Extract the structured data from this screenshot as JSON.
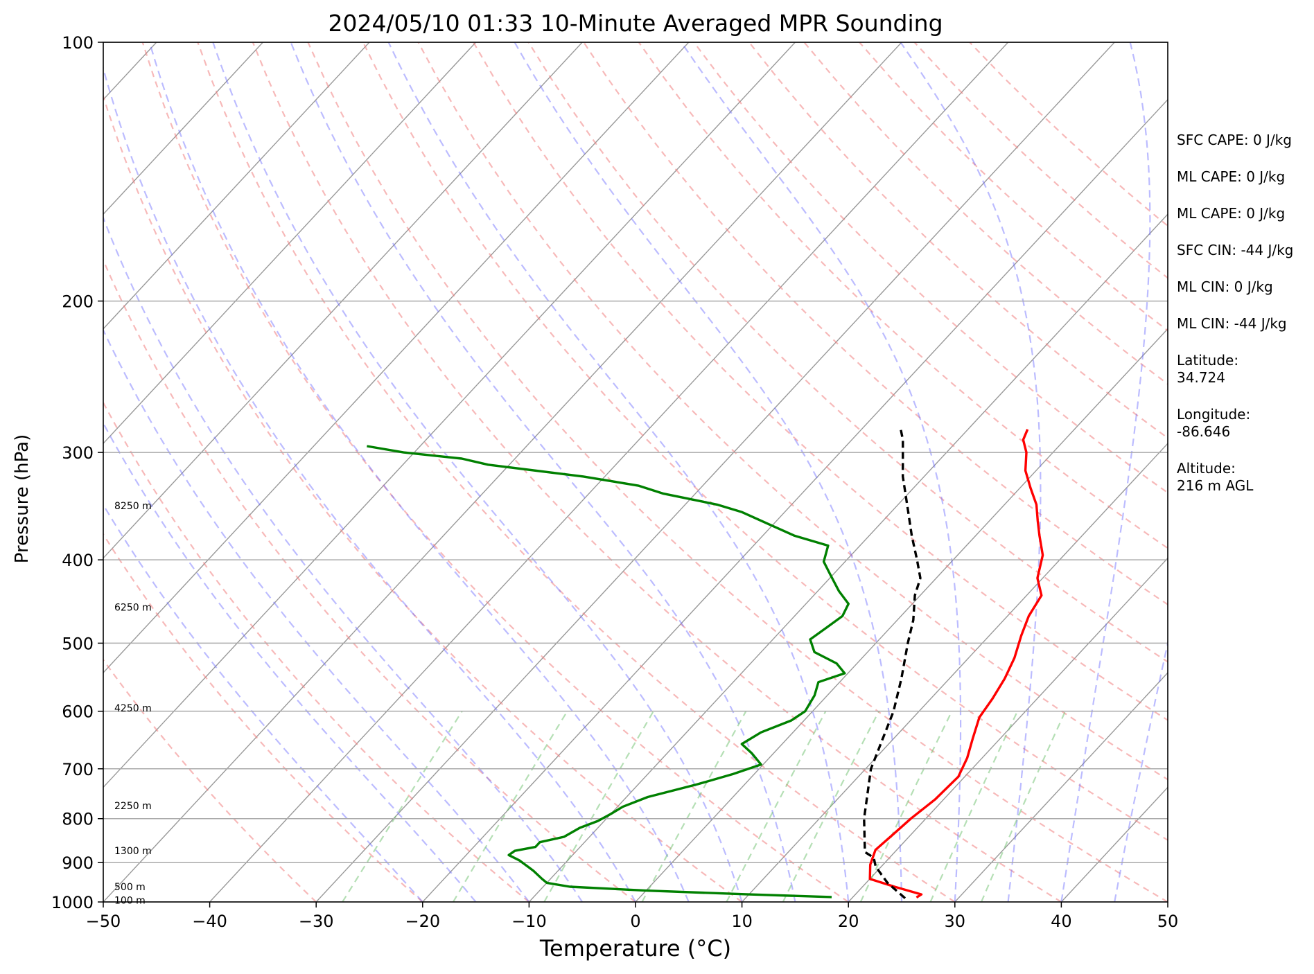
{
  "chart_data": {
    "type": "line",
    "subtype": "skew-t log-p",
    "title": "2024/05/10 01:33 10-Minute Averaged MPR Sounding",
    "xlabel": "Temperature (°C)",
    "ylabel": "Pressure (hPa)",
    "xlim": [
      -50,
      50
    ],
    "ylim": [
      1000,
      100
    ],
    "y_scale": "log",
    "x_ticks": [
      "−50",
      "−40",
      "−30",
      "−20",
      "−10",
      "0",
      "10",
      "20",
      "30",
      "40",
      "50"
    ],
    "x_tick_values": [
      -50,
      -40,
      -30,
      -20,
      -10,
      0,
      10,
      20,
      30,
      40,
      50
    ],
    "y_ticks": [
      "100",
      "200",
      "300",
      "400",
      "500",
      "600",
      "700",
      "800",
      "900",
      "1000"
    ],
    "y_tick_values": [
      100,
      200,
      300,
      400,
      500,
      600,
      700,
      800,
      900,
      1000
    ],
    "grid": true,
    "series": [
      {
        "color": "#ff0000",
        "points": [
          [
            26.0,
            988
          ],
          [
            26.2,
            980
          ],
          [
            23.0,
            960
          ],
          [
            20.0,
            940
          ],
          [
            18.8,
            905
          ],
          [
            18.0,
            870
          ],
          [
            18.3,
            835
          ],
          [
            18.6,
            800
          ],
          [
            19.2,
            760
          ],
          [
            19.4,
            715
          ],
          [
            18.6,
            680
          ],
          [
            17.4,
            645
          ],
          [
            16.2,
            610
          ],
          [
            15.8,
            580
          ],
          [
            15.2,
            550
          ],
          [
            14.3,
            520
          ],
          [
            13.0,
            490
          ],
          [
            12.0,
            465
          ],
          [
            11.4,
            440
          ],
          [
            9.5,
            420
          ],
          [
            8.0,
            395
          ],
          [
            6.0,
            375
          ],
          [
            4.5,
            360
          ],
          [
            3.0,
            345
          ],
          [
            1.0,
            330
          ],
          [
            -1.0,
            315
          ],
          [
            -2.5,
            300
          ],
          [
            -3.9,
            290
          ],
          [
            -4.4,
            282
          ]
        ]
      },
      {
        "color": "#008000",
        "points": [
          [
            18.0,
            987
          ],
          [
            10.0,
            980
          ],
          [
            0.0,
            970
          ],
          [
            -7.5,
            960
          ],
          [
            -10.0,
            950
          ],
          [
            -10.8,
            940
          ],
          [
            -12.3,
            920
          ],
          [
            -14.5,
            895
          ],
          [
            -16.0,
            882
          ],
          [
            -15.8,
            872
          ],
          [
            -14.2,
            863
          ],
          [
            -14.2,
            852
          ],
          [
            -12.4,
            840
          ],
          [
            -11.7,
            820
          ],
          [
            -10.6,
            805
          ],
          [
            -10.0,
            790
          ],
          [
            -9.5,
            775
          ],
          [
            -8.0,
            755
          ],
          [
            -4.5,
            730
          ],
          [
            -2.0,
            710
          ],
          [
            -0.2,
            692
          ],
          [
            -2.0,
            672
          ],
          [
            -3.8,
            655
          ],
          [
            -3.0,
            635
          ],
          [
            -1.2,
            615
          ],
          [
            -0.7,
            600
          ],
          [
            -1.2,
            575
          ],
          [
            -2.0,
            555
          ],
          [
            -0.3,
            542
          ],
          [
            -1.9,
            528
          ],
          [
            -5.0,
            512
          ],
          [
            -6.5,
            495
          ],
          [
            -6.0,
            480
          ],
          [
            -5.5,
            465
          ],
          [
            -6.0,
            450
          ],
          [
            -8.0,
            435
          ],
          [
            -10.4,
            415
          ],
          [
            -12.0,
            402
          ],
          [
            -13.0,
            385
          ],
          [
            -17.0,
            375
          ],
          [
            -20.0,
            365
          ],
          [
            -24.0,
            352
          ],
          [
            -27.0,
            345
          ],
          [
            -33.0,
            335
          ],
          [
            -36.0,
            328
          ],
          [
            -42.0,
            320
          ],
          [
            -52.0,
            310
          ],
          [
            -55.0,
            305
          ],
          [
            -61.0,
            300
          ],
          [
            -65.0,
            295
          ]
        ]
      },
      {
        "color": "#000000",
        "dashed": true,
        "points": [
          [
            25.0,
            990
          ],
          [
            22.0,
            950
          ],
          [
            19.5,
            910
          ],
          [
            18.5,
            888
          ],
          [
            17.2,
            875
          ],
          [
            14.2,
            800
          ],
          [
            10.5,
            700
          ],
          [
            7.6,
            600
          ],
          [
            5.5,
            550
          ],
          [
            3.0,
            500
          ],
          [
            1.5,
            470
          ],
          [
            -0.5,
            440
          ],
          [
            -1.5,
            420
          ],
          [
            -3.4,
            400
          ],
          [
            -6.0,
            375
          ],
          [
            -8.6,
            350
          ],
          [
            -12.0,
            320
          ],
          [
            -15.2,
            290
          ],
          [
            -16.6,
            280
          ]
        ]
      }
    ],
    "height_labels": [
      {
        "text": "8250 m",
        "p": 346
      },
      {
        "text": "6250 m",
        "p": 454
      },
      {
        "text": "4250 m",
        "p": 595
      },
      {
        "text": "2250 m",
        "p": 773
      },
      {
        "text": "1300 m",
        "p": 872
      },
      {
        "text": "500 m",
        "p": 960
      },
      {
        "text": "100 m",
        "p": 995
      }
    ]
  },
  "stats": [
    "SFC CAPE: 0 J/kg",
    "ML CAPE: 0 J/kg",
    "ML CAPE: 0 J/kg",
    "SFC CIN: -44 J/kg",
    "ML CIN: 0 J/kg",
    "ML CIN: -44 J/kg",
    "Latitude:\n34.724",
    "Longitude:\n-86.646",
    "Altitude:\n216 m AGL"
  ]
}
